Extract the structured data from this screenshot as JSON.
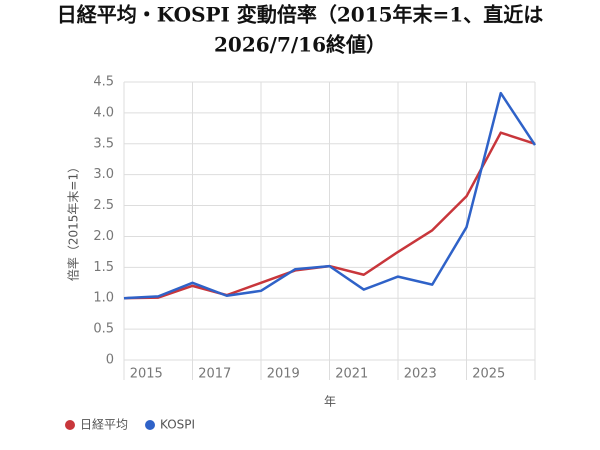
{
  "chart_data": {
    "type": "line",
    "title_lines": [
      "日経平均・KOSPI 変動倍率（2015年末=1、直近は",
      "2026/7/16終値）"
    ],
    "ylabel": "倍率（2015年末=1）",
    "xlabel": "年",
    "categories": [
      "2015",
      null,
      "2017",
      null,
      "2019",
      null,
      "2021",
      null,
      "2023",
      null,
      "2025",
      null,
      null
    ],
    "series": [
      {
        "name": "日経平均",
        "color": "#c8363b",
        "values": [
          1.0,
          1.01,
          1.2,
          1.05,
          1.25,
          1.45,
          1.52,
          1.38,
          1.75,
          2.1,
          2.65,
          3.68,
          3.5
        ]
      },
      {
        "name": "KOSPI",
        "color": "#2f62c8",
        "values": [
          1.0,
          1.03,
          1.25,
          1.04,
          1.12,
          1.47,
          1.52,
          1.14,
          1.35,
          1.22,
          2.15,
          4.32,
          3.48
        ]
      }
    ],
    "ylim": [
      0,
      4.5
    ],
    "yticks": [
      0,
      0.5,
      {
        "value": 1,
        "label": "1.0"
      },
      1.5,
      {
        "value": 2,
        "label": "2.0"
      },
      2.5,
      {
        "value": 3,
        "label": "3.0"
      },
      3.5,
      {
        "value": 4,
        "label": "4.0"
      },
      4.5
    ],
    "grid": true,
    "legend": "bottom-left"
  }
}
